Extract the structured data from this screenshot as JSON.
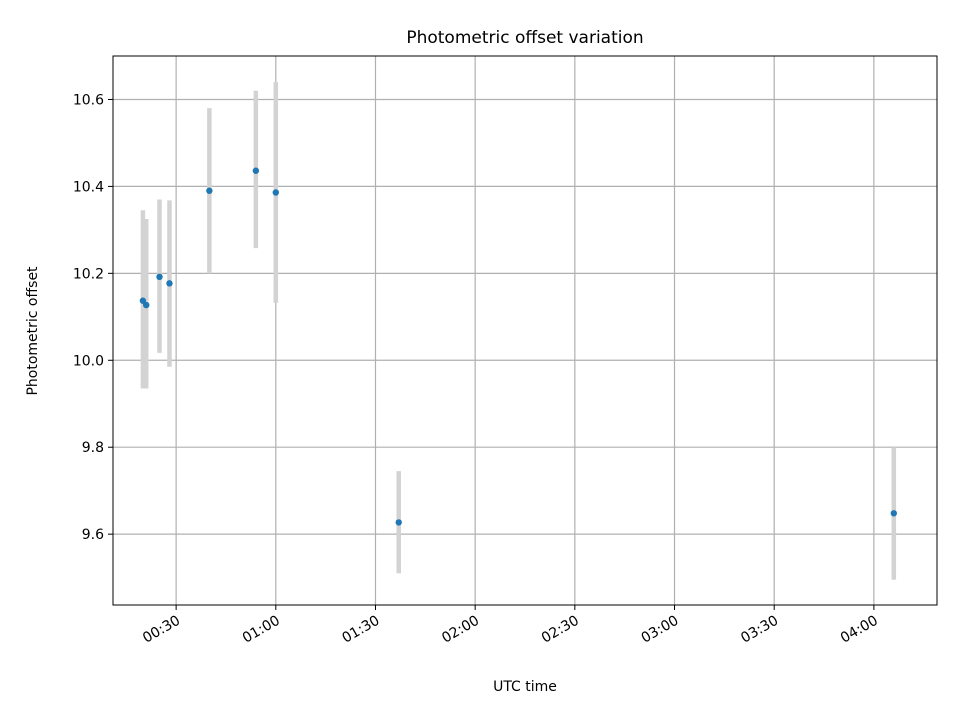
{
  "chart_data": {
    "type": "scatter",
    "title": "Photometric offset variation",
    "xlabel": "UTC time",
    "ylabel": "Photometric offset",
    "x_unit": "minutes",
    "xlim": [
      "00:11",
      "04:19"
    ],
    "ylim": [
      9.437,
      10.7
    ],
    "grid": true,
    "legend": "none",
    "x_ticks": [
      {
        "value": "00:30",
        "label": "00:30"
      },
      {
        "value": "01:00",
        "label": "01:00"
      },
      {
        "value": "01:30",
        "label": "01:30"
      },
      {
        "value": "02:00",
        "label": "02:00"
      },
      {
        "value": "02:30",
        "label": "02:30"
      },
      {
        "value": "03:00",
        "label": "03:00"
      },
      {
        "value": "03:30",
        "label": "03:30"
      },
      {
        "value": "04:00",
        "label": "04:00"
      }
    ],
    "y_ticks": [
      {
        "value": 9.6,
        "label": "9.6"
      },
      {
        "value": 9.8,
        "label": "9.8"
      },
      {
        "value": 10.0,
        "label": "10.0"
      },
      {
        "value": 10.2,
        "label": "10.2"
      },
      {
        "value": 10.4,
        "label": "10.4"
      },
      {
        "value": 10.6,
        "label": "10.6"
      }
    ],
    "colors": {
      "point": "#1f77b4",
      "error_bar": "#d3d3d3",
      "grid": "#b0b0b0"
    },
    "points": [
      {
        "x": "00:20",
        "y": 10.137,
        "y_low": 9.935,
        "y_high": 10.345
      },
      {
        "x": "00:21",
        "y": 10.127,
        "y_low": 9.935,
        "y_high": 10.325
      },
      {
        "x": "00:25",
        "y": 10.192,
        "y_low": 10.017,
        "y_high": 10.37
      },
      {
        "x": "00:28",
        "y": 10.177,
        "y_low": 9.985,
        "y_high": 10.368
      },
      {
        "x": "00:40",
        "y": 10.39,
        "y_low": 10.2,
        "y_high": 10.58
      },
      {
        "x": "00:54",
        "y": 10.436,
        "y_low": 10.258,
        "y_high": 10.62
      },
      {
        "x": "01:00",
        "y": 10.386,
        "y_low": 10.132,
        "y_high": 10.64
      },
      {
        "x": "01:37",
        "y": 9.627,
        "y_low": 9.51,
        "y_high": 9.745
      },
      {
        "x": "04:06",
        "y": 9.648,
        "y_low": 9.495,
        "y_high": 9.8
      }
    ]
  }
}
